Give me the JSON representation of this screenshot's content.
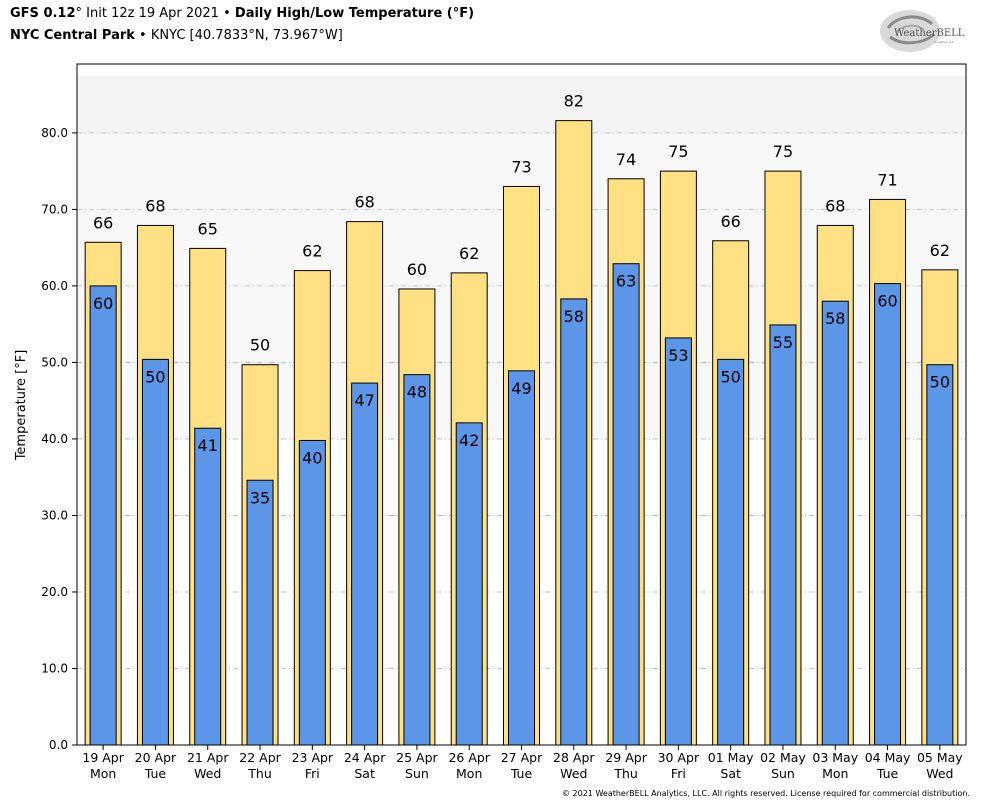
{
  "header": {
    "model": "GFS 0.12",
    "model_degree": "°",
    "init": "Init 12z 19 Apr 2021",
    "bullet": "•",
    "product": "Daily High/Low Temperature (°F)",
    "station_name": "NYC Central Park",
    "station_info": "KNYC [40.7833°N, 73.967°W]"
  },
  "logo": {
    "text": "WeatherBELL",
    "subtext": "Analytics LLC"
  },
  "copyright": "© 2021 WeatherBELL Analytics, LLC. All rights reserved. License required for commercial distribution.",
  "chart_data": {
    "type": "bar",
    "ylabel": "Temperature [°F]",
    "ylim": [
      0,
      89
    ],
    "yticks": [
      0,
      10,
      20,
      30,
      40,
      50,
      60,
      70,
      80
    ],
    "ytick_labels": [
      "0.0",
      "10.0",
      "20.0",
      "30.0",
      "40.0",
      "50.0",
      "60.0",
      "70.0",
      "80.0"
    ],
    "grid": true,
    "categories": [
      {
        "date": "19 Apr",
        "day": "Mon"
      },
      {
        "date": "20 Apr",
        "day": "Tue"
      },
      {
        "date": "21 Apr",
        "day": "Wed"
      },
      {
        "date": "22 Apr",
        "day": "Thu"
      },
      {
        "date": "23 Apr",
        "day": "Fri"
      },
      {
        "date": "24 Apr",
        "day": "Sat"
      },
      {
        "date": "25 Apr",
        "day": "Sun"
      },
      {
        "date": "26 Apr",
        "day": "Mon"
      },
      {
        "date": "27 Apr",
        "day": "Tue"
      },
      {
        "date": "28 Apr",
        "day": "Wed"
      },
      {
        "date": "29 Apr",
        "day": "Thu"
      },
      {
        "date": "30 Apr",
        "day": "Fri"
      },
      {
        "date": "01 May",
        "day": "Sat"
      },
      {
        "date": "02 May",
        "day": "Sun"
      },
      {
        "date": "03 May",
        "day": "Mon"
      },
      {
        "date": "04 May",
        "day": "Tue"
      },
      {
        "date": "05 May",
        "day": "Wed"
      }
    ],
    "series": [
      {
        "color": "#ffe082",
        "values": [
          65.7,
          67.9,
          64.9,
          49.7,
          62.0,
          68.4,
          59.6,
          61.7,
          73.0,
          81.6,
          74.0,
          75.0,
          65.9,
          75.0,
          67.9,
          71.3,
          62.1
        ],
        "labels": [
          "66",
          "68",
          "65",
          "50",
          "62",
          "68",
          "60",
          "62",
          "73",
          "82",
          "74",
          "75",
          "66",
          "75",
          "68",
          "71",
          "62"
        ]
      },
      {
        "color": "#5b96e8",
        "values": [
          60.0,
          50.4,
          41.4,
          34.6,
          39.8,
          47.3,
          48.4,
          42.1,
          48.9,
          58.3,
          62.9,
          53.2,
          50.4,
          54.9,
          58.0,
          60.3,
          49.7
        ],
        "labels": [
          "60",
          "50",
          "41",
          "35",
          "40",
          "47",
          "48",
          "42",
          "49",
          "58",
          "63",
          "53",
          "50",
          "55",
          "58",
          "60",
          "50"
        ]
      }
    ]
  }
}
